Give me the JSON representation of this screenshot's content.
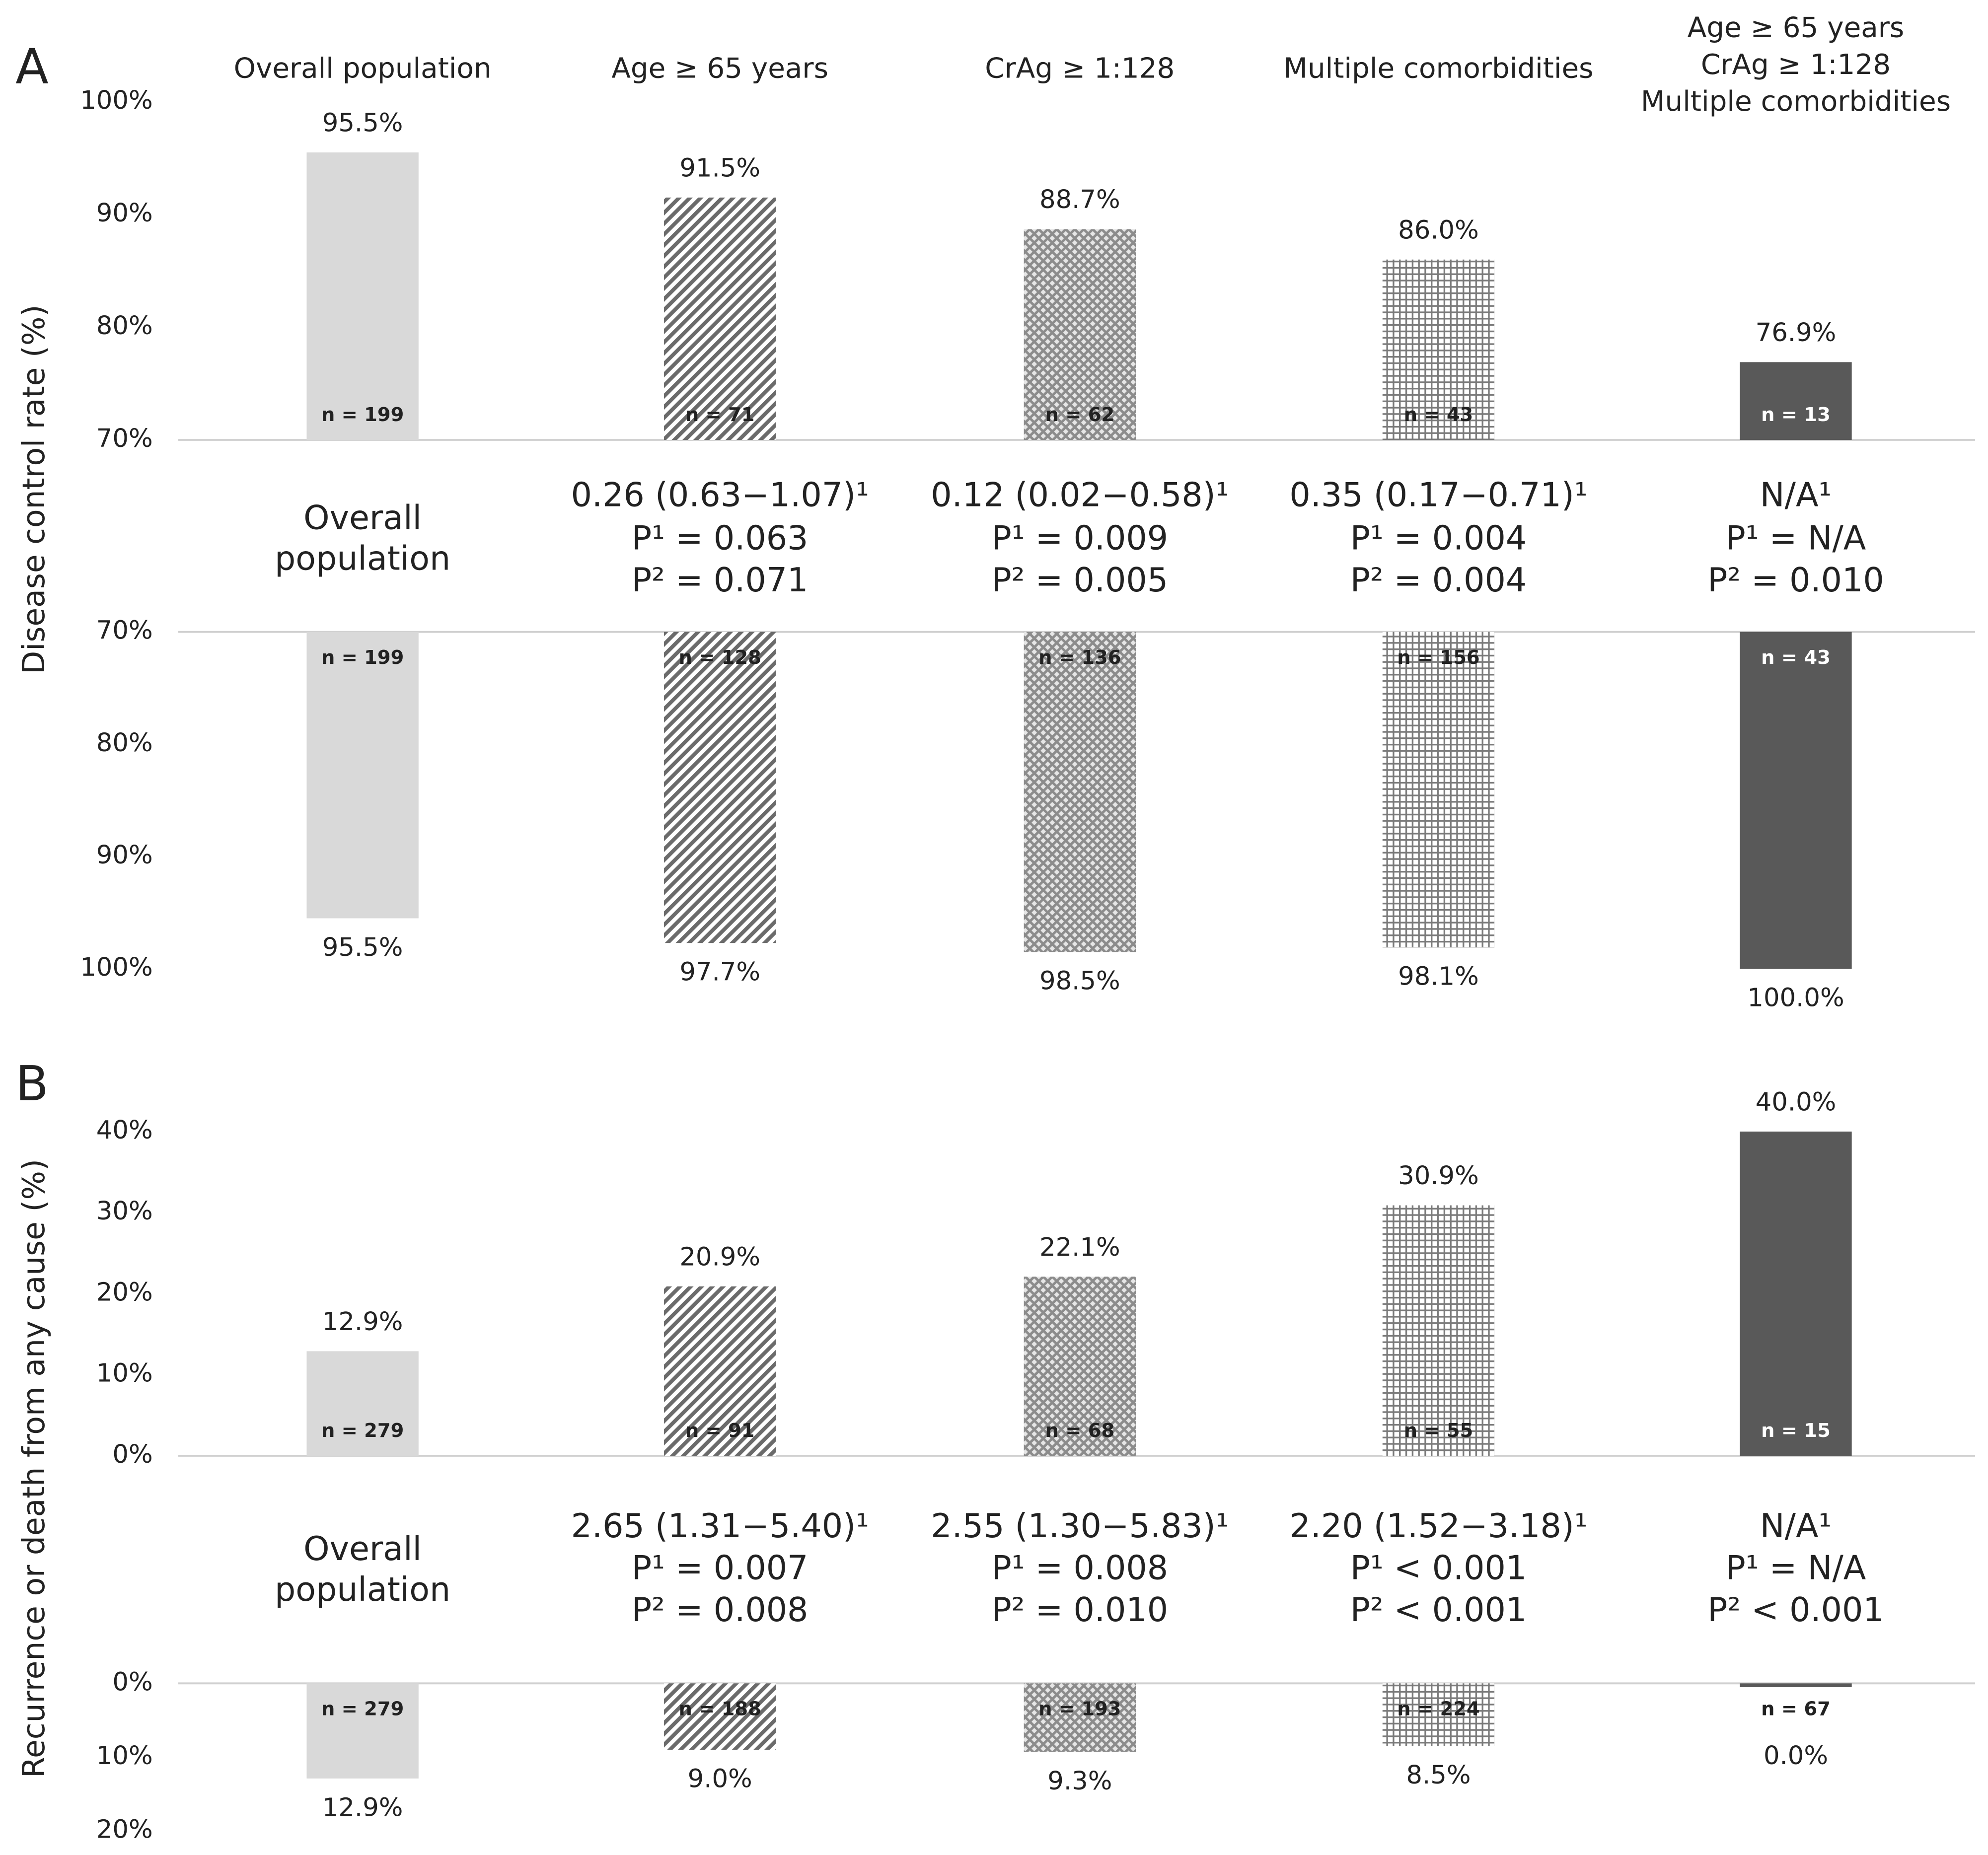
{
  "chart_data": [
    {
      "type": "bar",
      "panel": "A",
      "y_label": "Disease control rate (%)",
      "categories": [
        "Overall population",
        "Age ≥ 65 years",
        "CrAg ≥ 1:128",
        "Multiple comorbidities",
        [
          "Age ≥ 65 years",
          "CrAg ≥ 1:128",
          "Multiple comorbidities"
        ]
      ],
      "colors": [
        "#d9d9d9",
        "#6b6b6b",
        "#8c8c8c",
        "#7a7a7a",
        "#595959"
      ],
      "patterns": [
        "solid",
        "diagonal",
        "diamond",
        "grid",
        "solid"
      ],
      "upper": {
        "values": [
          95.5,
          91.5,
          88.7,
          86.0,
          76.9
        ],
        "value_labels": [
          "95.5%",
          "91.5%",
          "88.7%",
          "86.0%",
          "76.9%"
        ],
        "n_labels": [
          "n = 199",
          "n = 71",
          "n = 62",
          "n = 43",
          "n = 13"
        ],
        "ylim": [
          70,
          100
        ],
        "yticks": [
          {
            "value": 70,
            "label": "70%"
          },
          {
            "value": 80,
            "label": "80%"
          },
          {
            "value": 90,
            "label": "90%"
          },
          {
            "value": 100,
            "label": "100%"
          }
        ]
      },
      "stats": [
        [
          "Overall",
          "population"
        ],
        [
          "0.26 (0.63−1.07)¹",
          "P¹ = 0.063",
          "P² = 0.071"
        ],
        [
          "0.12 (0.02−0.58)¹",
          "P¹ = 0.009",
          "P² = 0.005"
        ],
        [
          "0.35 (0.17−0.71)¹",
          "P¹ = 0.004",
          "P² = 0.004"
        ],
        [
          "N/A¹",
          "P¹ = N/A",
          "P² = 0.010"
        ]
      ],
      "lower": {
        "values": [
          95.5,
          97.7,
          98.5,
          98.1,
          100.0
        ],
        "value_labels": [
          "95.5%",
          "97.7%",
          "98.5%",
          "98.1%",
          "100.0%"
        ],
        "n_labels": [
          "n = 199",
          "n = 128",
          "n = 136",
          "n = 156",
          "n = 43"
        ],
        "ylim": [
          70,
          100
        ],
        "yticks": [
          {
            "value": 70,
            "label": "70%"
          },
          {
            "value": 80,
            "label": "80%"
          },
          {
            "value": 90,
            "label": "90%"
          },
          {
            "value": 100,
            "label": "100%"
          }
        ]
      }
    },
    {
      "type": "bar",
      "panel": "B",
      "y_label": "Recurrence or death from any cause (%)",
      "colors": [
        "#d9d9d9",
        "#6b6b6b",
        "#8c8c8c",
        "#7a7a7a",
        "#595959"
      ],
      "patterns": [
        "solid",
        "diagonal",
        "diamond",
        "grid",
        "solid"
      ],
      "upper": {
        "values": [
          12.9,
          20.9,
          22.1,
          30.9,
          40.0
        ],
        "value_labels": [
          "12.9%",
          "20.9%",
          "22.1%",
          "30.9%",
          "40.0%"
        ],
        "n_labels": [
          "n = 279",
          "n = 91",
          "n = 68",
          "n = 55",
          "n = 15"
        ],
        "ylim": [
          0,
          40
        ],
        "yticks": [
          {
            "value": 0,
            "label": "0%"
          },
          {
            "value": 10,
            "label": "10%"
          },
          {
            "value": 20,
            "label": "20%"
          },
          {
            "value": 30,
            "label": "30%"
          },
          {
            "value": 40,
            "label": "40%"
          }
        ]
      },
      "stats": [
        [
          "Overall",
          "population"
        ],
        [
          "2.65 (1.31−5.40)¹",
          "P¹ = 0.007",
          "P² = 0.008"
        ],
        [
          "2.55 (1.30−5.83)¹",
          "P¹ = 0.008",
          "P² = 0.010"
        ],
        [
          "2.20 (1.52−3.18)¹",
          "P¹ < 0.001",
          "P² < 0.001"
        ],
        [
          "N/A¹",
          "P¹ = N/A",
          "P² < 0.001"
        ]
      ],
      "lower": {
        "values": [
          12.9,
          9.0,
          9.3,
          8.5,
          0.0
        ],
        "value_labels": [
          "12.9%",
          "9.0%",
          "9.3%",
          "8.5%",
          "0.0%"
        ],
        "n_labels": [
          "n = 279",
          "n = 188",
          "n = 193",
          "n = 224",
          "n = 67"
        ],
        "ylim": [
          0,
          20
        ],
        "yticks": [
          {
            "value": 0,
            "label": "0%"
          },
          {
            "value": 10,
            "label": "10%"
          },
          {
            "value": 20,
            "label": "20%"
          }
        ]
      }
    }
  ]
}
